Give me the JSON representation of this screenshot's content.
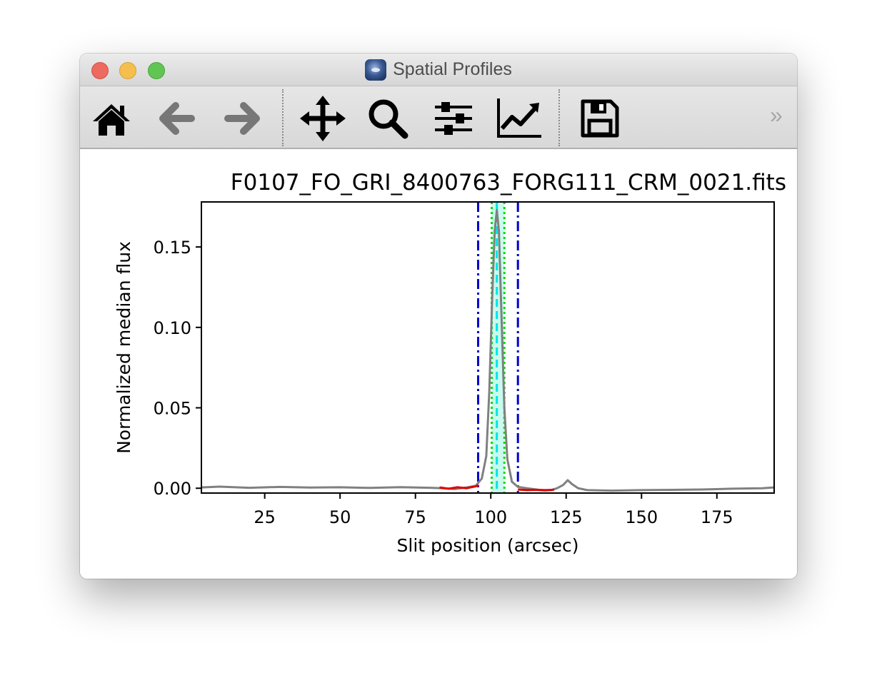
{
  "window": {
    "title": "Spatial Profiles"
  },
  "toolbar": {
    "buttons": [
      {
        "name": "home-button",
        "icon": "home-icon"
      },
      {
        "name": "back-button",
        "icon": "arrow-left-icon"
      },
      {
        "name": "forward-button",
        "icon": "arrow-right-icon"
      },
      {
        "name": "pan-button",
        "icon": "move-icon"
      },
      {
        "name": "zoom-button",
        "icon": "magnifier-icon"
      },
      {
        "name": "subplots-button",
        "icon": "sliders-icon"
      },
      {
        "name": "axes-button",
        "icon": "line-chart-icon"
      },
      {
        "name": "save-button",
        "icon": "floppy-disk-icon"
      }
    ],
    "overflow": "»"
  },
  "chart_data": {
    "type": "line",
    "title": "F0107_FO_GRI_8400763_FORG111_CRM_0021.fits",
    "xlabel": "Slit position (arcsec)",
    "ylabel": "Normalized median flux",
    "xlim": [
      4,
      194
    ],
    "ylim": [
      -0.003,
      0.178
    ],
    "xticks": [
      25,
      50,
      75,
      100,
      125,
      150,
      175
    ],
    "yticks": [
      0.0,
      0.05,
      0.1,
      0.15
    ],
    "xtick_labels": [
      "25",
      "50",
      "75",
      "100",
      "125",
      "150",
      "175"
    ],
    "ytick_labels": [
      "0.00",
      "0.05",
      "0.10",
      "0.15"
    ],
    "grid": false,
    "series": [
      {
        "role": "profile",
        "color": "#808080",
        "x": [
          4,
          10,
          20,
          30,
          40,
          50,
          60,
          70,
          80,
          84,
          88,
          92,
          95,
          97,
          98.5,
          99.5,
          100.5,
          101.3,
          102,
          102.7,
          103.5,
          104.5,
          105.5,
          107,
          109,
          112,
          116,
          120,
          122,
          124,
          125.5,
          127,
          129,
          132,
          140,
          150,
          160,
          170,
          180,
          190,
          194
        ],
        "y": [
          0.0005,
          0.001,
          0.0003,
          0.0008,
          0.0004,
          0.0006,
          0.0002,
          0.0007,
          0.0003,
          0.0,
          -0.0005,
          0.0005,
          0.0015,
          0.006,
          0.02,
          0.06,
          0.12,
          0.16,
          0.173,
          0.16,
          0.11,
          0.05,
          0.018,
          0.004,
          0.0008,
          0.0,
          -0.001,
          -0.0012,
          0.0,
          0.002,
          0.005,
          0.0025,
          0.0,
          -0.0012,
          -0.0015,
          -0.0012,
          -0.001,
          -0.0008,
          -0.0003,
          0.0,
          0.0005
        ]
      },
      {
        "role": "background-left",
        "color": "#e00000",
        "x": [
          83,
          86,
          89,
          92,
          95,
          96
        ],
        "y": [
          0.0005,
          -0.0003,
          0.0006,
          0.0,
          0.0012,
          0.0018
        ]
      },
      {
        "role": "background-right",
        "color": "#e00000",
        "x": [
          109,
          112,
          115,
          118,
          121
        ],
        "y": [
          -0.0008,
          -0.0012,
          -0.001,
          -0.0013,
          -0.0009
        ]
      }
    ],
    "vlines": [
      {
        "x": 95.8,
        "color": "#0000cc",
        "style": "dashdot"
      },
      {
        "x": 109.0,
        "color": "#0000cc",
        "style": "dashdot"
      },
      {
        "x": 100.3,
        "color": "#00dd00",
        "style": "dotted"
      },
      {
        "x": 104.5,
        "color": "#00dd00",
        "style": "dotted"
      },
      {
        "x": 102.0,
        "color": "#00e5e5",
        "style": "dashed"
      }
    ],
    "aperture_band": {
      "x": [
        100.3,
        104.5
      ],
      "color": "#c8fbee"
    }
  }
}
